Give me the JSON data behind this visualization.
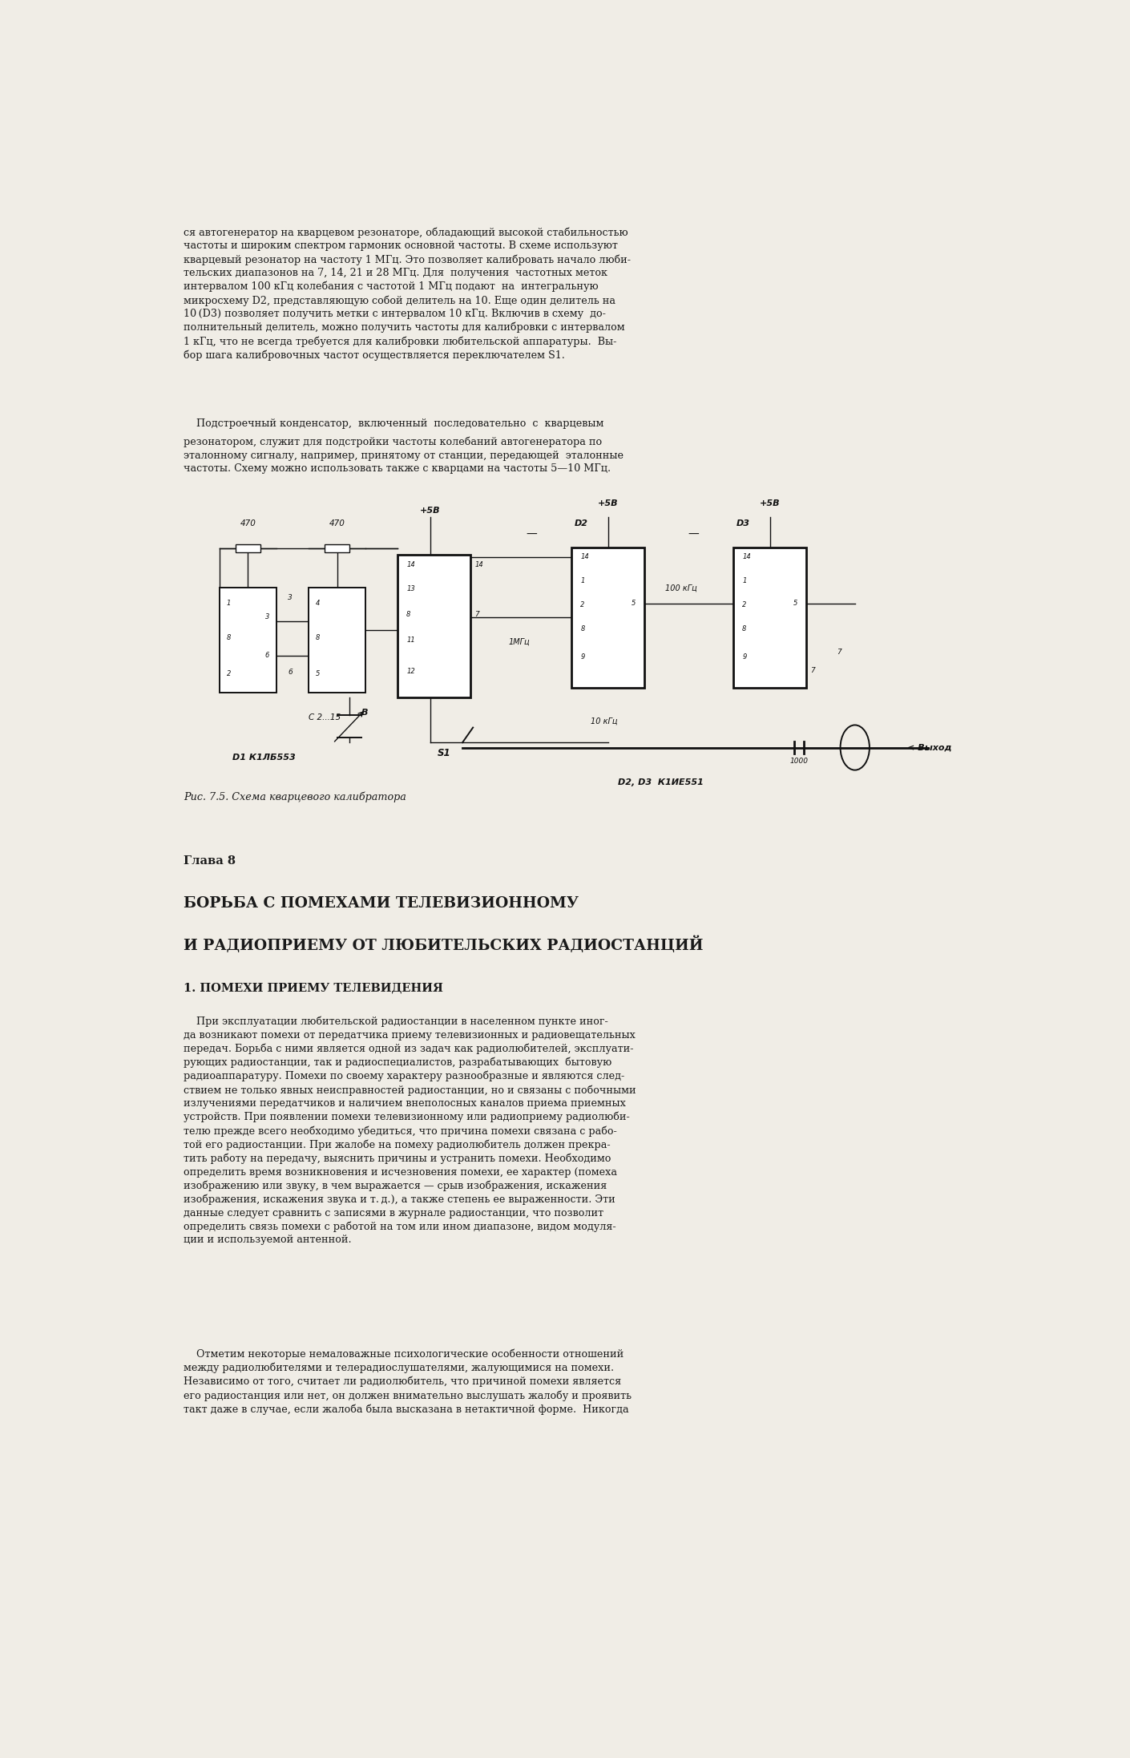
{
  "bg_color": "#f0ede6",
  "text_color": "#1a1a1a",
  "page_width": 14.1,
  "page_height": 21.93,
  "top_paragraph": "ся автогенератор на кварцевом резонаторе, обладающий высокой стабильностью\nчастоты и широким спектром гармоник основной частоты. В схеме используют\nкварцевый резонатор на частоту 1 МГц. Это позволяет калибровать начало люби-\nтельских диапазонов на 7, 14, 21 и 28 МГц. Для  получения  частотных меток\nинтервалом 100 кГц колебания с частотой 1 МГц подают  на  интегральную\nмикросхему D2, представляющую собой делитель на 10. Еще один делитель на\n10 (D3) позволяет получить метки с интервалом 10 кГц. Включив в схему  до-\nполнительный делитель, можно получить частоты для калибровки с интервалом\n1 кГц, что не всегда требуется для калибровки любительской аппаратуры.  Вы-\nбор шага калибровочных частот осуществляется переключателем S1.",
  "second_paragraph_indent": "    Подстроечный конденсатор,  включенный  последовательно  с  кварцевым",
  "second_paragraph_rest": "резонатором, служит для подстройки частоты колебаний автогенератора по\nэталонному сигналу, например, принятому от станции, передающей  эталонные\nчастоты. Схему можно использовать также с кварцами на частоты 5—10 МГц.",
  "fig_caption": "Рис. 7.5. Схема кварцевого калибратора",
  "chapter_header": "Глава 8",
  "chapter_title1": "БОРЬБА С ПОМЕХАМИ ТЕЛЕВИЗИОННОМУ",
  "chapter_title2": "И РАДИОПРИЕМУ ОТ ЛЮБИТЕЛЬСКИХ РАДИОСТАНЦИЙ",
  "section_header": "1. ПОМЕХИ ПРИЕМУ ТЕЛЕВИДЕНИЯ",
  "body_text": "    При эксплуатации любительской радиостанции в населенном пункте иног-\nда возникают помехи от передатчика приему телевизионных и радиовещательных\nпередач. Борьба с ними является одной из задач как радиолюбителей, эксплуати-\nрующих радиостанции, так и радиоспециалистов, разрабатывающих  бытовую\nрадиоаппаратуру. Помехи по своему характеру разнообразные и являются след-\nствием не только явных неисправностей радиостанции, но и связаны с побочными\nизлучениями передатчиков и наличием внеполосных каналов приема приемных\nустройств. При появлении помехи телевизионному или радиоприему радиолюби-\nтелю прежде всего необходимо убедиться, что причина помехи связана с рабо-\nтой его радиостанции. При жалобе на помеху радиолюбитель должен прекра-\nтить работу на передачу, выяснить причины и устранить помехи. Необходимо\nопределить время возникновения и исчезновения помехи, ее характер (помеха\nизображению или звуку, в чем выражается — срыв изображения, искажения\nизображения, искажения звука и т. д.), а также степень ее выраженности. Эти\nданные следует сравнить с записями в журнале радиостанции, что позволит\nопределить связь помехи с работой на том или ином диапазоне, видом модуля-\nции и используемой антенной.",
  "body_text2": "    Отметим некоторые немаловажные психологические особенности отношений\nмежду радиолюбителями и телерадиослушателями, жалующимися на помехи.\nНезависимо от того, считает ли радиолюбитель, что причиной помехи является\nего радиостанция или нет, он должен внимательно выслушать жалобу и проявить\nтакт даже в случае, если жалоба была высказана в нетактичной форме.  Никогда"
}
